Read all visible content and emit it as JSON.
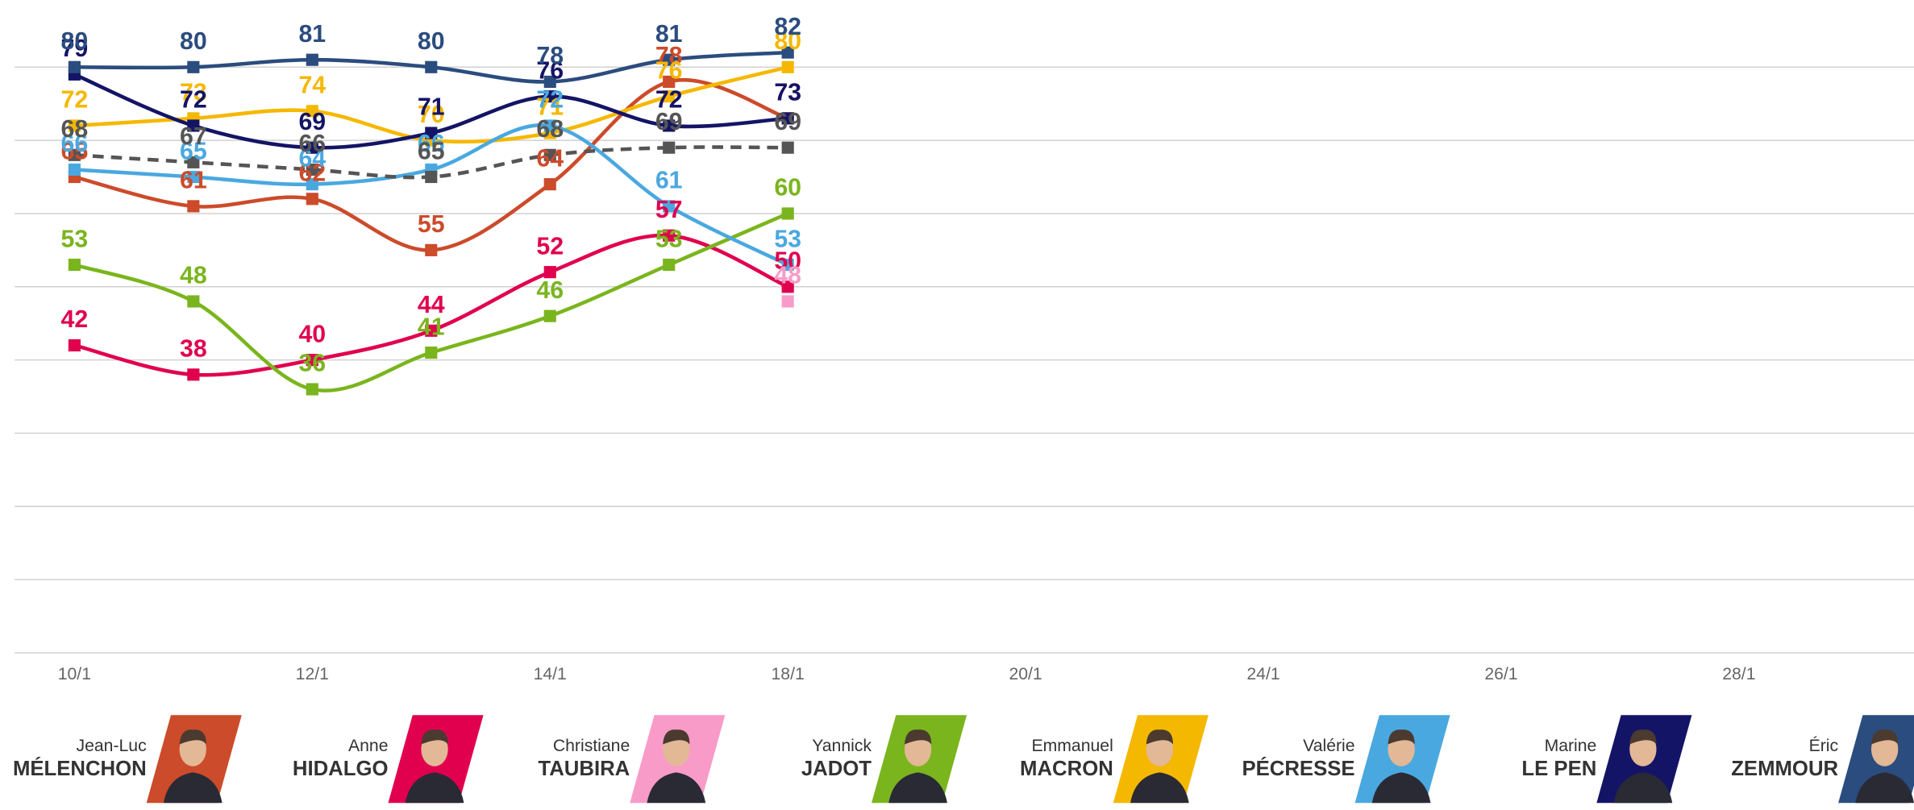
{
  "chart_data": {
    "type": "line",
    "categories": [
      "10/1",
      null,
      "12/1",
      null,
      "14/1",
      null,
      "18/1",
      null,
      "20/1",
      null,
      "24/1",
      null,
      "26/1",
      null,
      "28/1",
      null
    ],
    "ylim": [
      0,
      89
    ],
    "yticks": [
      0,
      10,
      20,
      30,
      40,
      50,
      60,
      70,
      80
    ],
    "grid": true,
    "series": [
      {
        "first_name": "Jean-Luc",
        "name": "MÉLENCHON",
        "color": "#cc4b2a",
        "values": [
          65,
          61,
          62,
          55,
          64,
          78,
          73,
          null,
          null,
          null,
          null,
          null,
          null,
          null,
          null,
          null
        ]
      },
      {
        "first_name": "Anne",
        "name": "HIDALGO",
        "color": "#e0004d",
        "values": [
          42,
          38,
          40,
          44,
          52,
          57,
          50,
          null,
          null,
          null,
          null,
          null,
          null,
          null,
          null,
          null
        ]
      },
      {
        "first_name": "Christiane",
        "name": "TAUBIRA",
        "color": "#f99bc8",
        "values": [
          null,
          null,
          null,
          null,
          null,
          null,
          48,
          null,
          null,
          null,
          null,
          null,
          null,
          null,
          null,
          null
        ]
      },
      {
        "first_name": "Yannick",
        "name": "JADOT",
        "color": "#7ab51d",
        "values": [
          53,
          48,
          36,
          41,
          46,
          53,
          60,
          null,
          null,
          null,
          null,
          null,
          null,
          null,
          null,
          null
        ]
      },
      {
        "first_name": "Emmanuel",
        "name": "MACRON",
        "color": "#f5b800",
        "values": [
          72,
          73,
          74,
          70,
          71,
          76,
          80,
          null,
          null,
          null,
          null,
          null,
          null,
          null,
          null,
          null
        ]
      },
      {
        "first_name": "Valérie",
        "name": "PÉCRESSE",
        "color": "#4aa8e0",
        "values": [
          66,
          65,
          64,
          66,
          72,
          61,
          53,
          null,
          null,
          null,
          null,
          null,
          null,
          null,
          null,
          null
        ]
      },
      {
        "first_name": "Marine",
        "name": "LE PEN",
        "color": "#141466",
        "values": [
          79,
          72,
          69,
          71,
          76,
          72,
          73,
          null,
          null,
          null,
          null,
          null,
          null,
          null,
          null,
          null
        ]
      },
      {
        "first_name": "Éric",
        "name": "ZEMMOUR",
        "color": "#2b4c7e",
        "values": [
          80,
          80,
          81,
          80,
          78,
          81,
          82,
          null,
          null,
          null,
          null,
          null,
          null,
          null,
          null,
          null
        ]
      },
      {
        "color": "#555555",
        "dashed": true,
        "values": [
          68,
          67,
          66,
          65,
          68,
          69,
          69,
          null,
          null,
          null,
          null,
          null,
          null,
          null,
          null,
          null
        ]
      }
    ]
  }
}
